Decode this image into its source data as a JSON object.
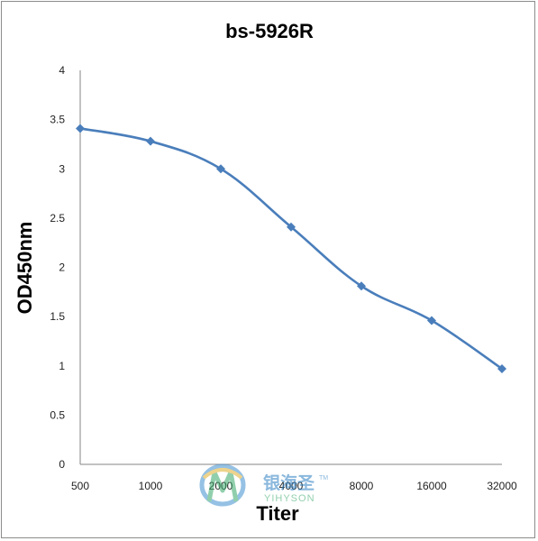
{
  "chart_data": {
    "type": "line",
    "title": "bs-5926R",
    "xlabel": "Titer",
    "ylabel": "OD450nm",
    "categories": [
      "500",
      "1000",
      "2000",
      "4000",
      "8000",
      "16000",
      "32000"
    ],
    "series": [
      {
        "values": [
          3.41,
          3.28,
          3.0,
          2.41,
          1.81,
          1.46,
          0.97
        ]
      }
    ],
    "ylim": [
      0,
      4
    ],
    "yticks": [
      "0",
      "0.5",
      "1",
      "1.5",
      "2",
      "2.5",
      "3",
      "3.5",
      "4"
    ],
    "grid": false,
    "legend": "none",
    "line_color": "#4a7ebb",
    "marker": "diamond"
  },
  "watermark": {
    "chinese": "银海圣",
    "english": "YIHYSON",
    "trademark": "TM"
  }
}
